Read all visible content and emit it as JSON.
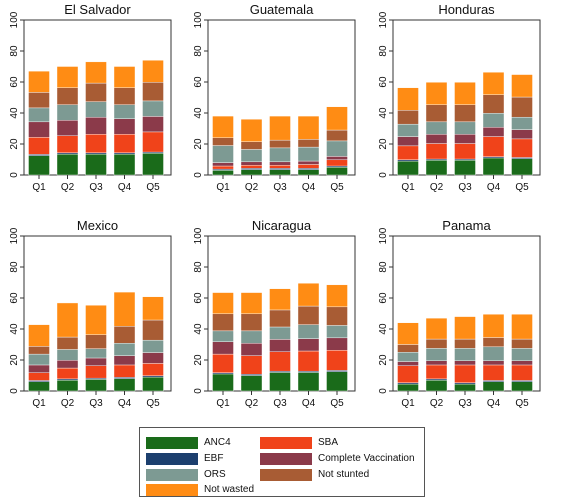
{
  "chart_data": {
    "type": "bar",
    "stacked": true,
    "categories": [
      "Q1",
      "Q2",
      "Q3",
      "Q4",
      "Q5"
    ],
    "ylim": [
      0,
      100
    ],
    "yticks": [
      0,
      20,
      40,
      60,
      80,
      100
    ],
    "grid": false,
    "legend_position": "bottom",
    "legend_order": [
      "ANC4",
      "SBA",
      "EBF",
      "Complete Vaccination",
      "ORS",
      "Not stunted",
      "Not wasted"
    ],
    "colors": {
      "ANC4": "#1a6b1a",
      "EBF": "#1c3f6e",
      "SBA": "#f0431a",
      "Complete Vaccination": "#8b3a4a",
      "ORS": "#7d9a93",
      "Not stunted": "#a85c34",
      "Not wasted": "#ff8c14"
    },
    "panels": [
      {
        "title": "El Salvador",
        "series": [
          {
            "name": "ANC4",
            "values": [
              12.5,
              13.5,
              13.5,
              13.5,
              14
            ]
          },
          {
            "name": "EBF",
            "values": [
              0.8,
              0.8,
              0.8,
              0.8,
              0.8
            ]
          },
          {
            "name": "SBA",
            "values": [
              11,
              11,
              12,
              12,
              13
            ]
          },
          {
            "name": "Complete Vaccination",
            "values": [
              10,
              10,
              11,
              10,
              10
            ]
          },
          {
            "name": "ORS",
            "values": [
              9,
              10,
              10,
              9,
              10
            ]
          },
          {
            "name": "Not stunted",
            "values": [
              10,
              11,
              12,
              11,
              12
            ]
          },
          {
            "name": "Not wasted",
            "values": [
              13.7,
              13.7,
              13.7,
              13.7,
              14.2
            ]
          }
        ]
      },
      {
        "title": "Guatemala",
        "series": [
          {
            "name": "ANC4",
            "values": [
              3,
              3.5,
              3.5,
              3.5,
              5
            ]
          },
          {
            "name": "EBF",
            "values": [
              0.8,
              0.8,
              0.8,
              0.8,
              0.8
            ]
          },
          {
            "name": "SBA",
            "values": [
              2,
              2,
              2,
              2.5,
              4
            ]
          },
          {
            "name": "Complete Vaccination",
            "values": [
              2.2,
              2.2,
              2.2,
              2.2,
              2.2
            ]
          },
          {
            "name": "ORS",
            "values": [
              11,
              8,
              9,
              9,
              10
            ]
          },
          {
            "name": "Not stunted",
            "values": [
              5,
              5,
              5,
              5,
              7
            ]
          },
          {
            "name": "Not wasted",
            "values": [
              14,
              14.5,
              15.5,
              15,
              15
            ]
          }
        ]
      },
      {
        "title": "Honduras",
        "series": [
          {
            "name": "ANC4",
            "values": [
              9,
              9.5,
              9.5,
              11,
              10.5
            ]
          },
          {
            "name": "EBF",
            "values": [
              0.8,
              0.8,
              0.8,
              0.8,
              0.8
            ]
          },
          {
            "name": "SBA",
            "values": [
              9,
              10,
              10,
              13,
              12
            ]
          },
          {
            "name": "Complete Vaccination",
            "values": [
              6,
              6,
              6,
              6,
              6
            ]
          },
          {
            "name": "ORS",
            "values": [
              8,
              8,
              8,
              9,
              8
            ]
          },
          {
            "name": "Not stunted",
            "values": [
              9,
              11,
              11,
              12,
              13
            ]
          },
          {
            "name": "Not wasted",
            "values": [
              14.5,
              14.5,
              14.5,
              14.5,
              14.5
            ]
          }
        ]
      },
      {
        "title": "Mexico",
        "series": [
          {
            "name": "ANC4",
            "values": [
              6,
              7,
              7.5,
              8,
              9
            ]
          },
          {
            "name": "EBF",
            "values": [
              0.8,
              0.8,
              0.8,
              0.8,
              0.8
            ]
          },
          {
            "name": "SBA",
            "values": [
              5,
              7,
              8,
              8,
              8
            ]
          },
          {
            "name": "Complete Vaccination",
            "values": [
              5,
              5,
              5,
              6,
              7
            ]
          },
          {
            "name": "ORS",
            "values": [
              7,
              7,
              6,
              8,
              8
            ]
          },
          {
            "name": "Not stunted",
            "values": [
              5,
              8,
              9,
              11,
              13
            ]
          },
          {
            "name": "Not wasted",
            "values": [
              14,
              22,
              19,
              22,
              15
            ]
          }
        ]
      },
      {
        "title": "Nicaragua",
        "series": [
          {
            "name": "ANC4",
            "values": [
              11,
              10,
              12,
              12,
              12.5
            ]
          },
          {
            "name": "EBF",
            "values": [
              0.8,
              0.8,
              0.8,
              0.8,
              0.8
            ]
          },
          {
            "name": "SBA",
            "values": [
              12,
              12,
              12.5,
              13,
              13
            ]
          },
          {
            "name": "Complete Vaccination",
            "values": [
              8,
              8,
              8,
              8,
              8
            ]
          },
          {
            "name": "ORS",
            "values": [
              7,
              8,
              8,
              9,
              8
            ]
          },
          {
            "name": "Not stunted",
            "values": [
              11,
              11,
              11,
              12,
              12
            ]
          },
          {
            "name": "Not wasted",
            "values": [
              13.7,
              13.7,
              13.7,
              14.7,
              14.2
            ]
          }
        ]
      },
      {
        "title": "Panama",
        "series": [
          {
            "name": "ANC4",
            "values": [
              4.5,
              7,
              4.5,
              6,
              6
            ]
          },
          {
            "name": "EBF",
            "values": [
              0.8,
              0.8,
              0.8,
              0.8,
              0.8
            ]
          },
          {
            "name": "SBA",
            "values": [
              11,
              9,
              11.5,
              10,
              10
            ]
          },
          {
            "name": "Complete Vaccination",
            "values": [
              2.7,
              2.7,
              2.7,
              2.7,
              2.7
            ]
          },
          {
            "name": "ORS",
            "values": [
              6,
              8,
              8,
              9,
              8
            ]
          },
          {
            "name": "Not stunted",
            "values": [
              5,
              6,
              6,
              6,
              6
            ]
          },
          {
            "name": "Not wasted",
            "values": [
              14,
              13.5,
              14.5,
              15,
              16
            ]
          }
        ]
      }
    ]
  }
}
